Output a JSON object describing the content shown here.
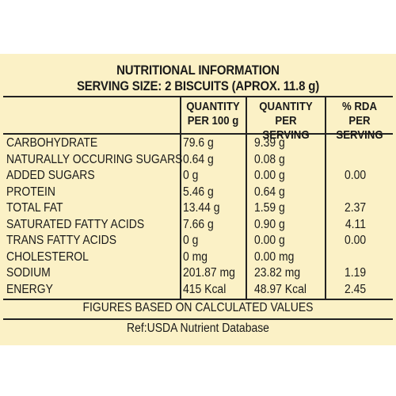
{
  "title": "NUTRITIONAL INFORMATION",
  "serving_size": "SERVING SIZE: 2 BISCUITS (APROX. 11.8 g)",
  "columns": {
    "per100": [
      "QUANTITY",
      "PER 100 g"
    ],
    "perServing": [
      "QUANTITY",
      "PER SERVING"
    ],
    "rda": [
      "% RDA PER",
      "SERVING"
    ]
  },
  "rows": [
    {
      "name": "CARBOHYDRATE",
      "per100": "79.6 g",
      "perServing": "9.39 g",
      "rda": ""
    },
    {
      "name": "NATURALLY OCCURING SUGARS",
      "per100": "0.64 g",
      "perServing": "0.08 g",
      "rda": ""
    },
    {
      "name": "ADDED SUGARS",
      "per100": "0 g",
      "perServing": "0.00 g",
      "rda": "0.00"
    },
    {
      "name": "PROTEIN",
      "per100": "5.46 g",
      "perServing": "0.64 g",
      "rda": ""
    },
    {
      "name": "TOTAL FAT",
      "per100": "13.44 g",
      "perServing": "1.59 g",
      "rda": "2.37"
    },
    {
      "name": "SATURATED FATTY ACIDS",
      "per100": "7.66 g",
      "perServing": "0.90 g",
      "rda": "4.11"
    },
    {
      "name": "TRANS FATTY ACIDS",
      "per100": "0 g",
      "perServing": "0.00 g",
      "rda": "0.00"
    },
    {
      "name": "CHOLESTEROL",
      "per100": "0 mg",
      "perServing": "0.00 mg",
      "rda": ""
    },
    {
      "name": "SODIUM",
      "per100": "201.87 mg",
      "perServing": "23.82 mg",
      "rda": "1.19"
    },
    {
      "name": "ENERGY",
      "per100": "415 Kcal",
      "perServing": "48.97 Kcal",
      "rda": "2.45"
    }
  ],
  "footer_note": "FIGURES BASED ON CALCULATED VALUES",
  "reference": "Ref:USDA Nutrient Database",
  "colors": {
    "background": "#fbf1c6",
    "text": "#1a1a1a"
  }
}
